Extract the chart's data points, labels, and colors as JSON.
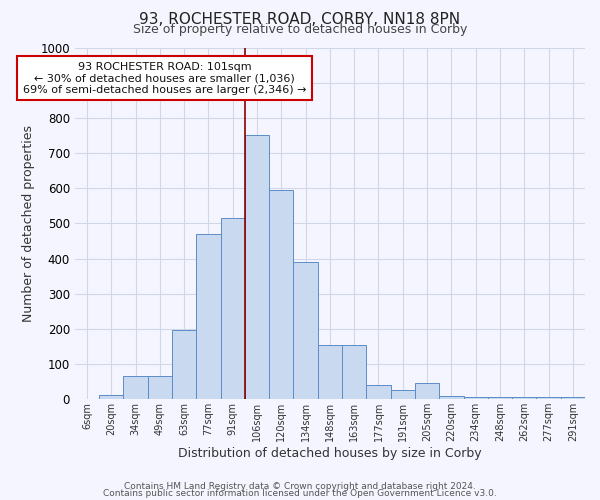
{
  "title1": "93, ROCHESTER ROAD, CORBY, NN18 8PN",
  "title2": "Size of property relative to detached houses in Corby",
  "xlabel": "Distribution of detached houses by size in Corby",
  "ylabel": "Number of detached properties",
  "annotation_line1": "93 ROCHESTER ROAD: 101sqm",
  "annotation_line2": "← 30% of detached houses are smaller (1,036)",
  "annotation_line3": "69% of semi-detached houses are larger (2,346) →",
  "bar_labels": [
    "6sqm",
    "20sqm",
    "34sqm",
    "49sqm",
    "63sqm",
    "77sqm",
    "91sqm",
    "106sqm",
    "120sqm",
    "134sqm",
    "148sqm",
    "163sqm",
    "177sqm",
    "191sqm",
    "205sqm",
    "220sqm",
    "234sqm",
    "248sqm",
    "262sqm",
    "277sqm",
    "291sqm"
  ],
  "bar_values": [
    0,
    11,
    65,
    65,
    196,
    470,
    515,
    750,
    595,
    390,
    155,
    155,
    40,
    25,
    45,
    10,
    5,
    5,
    5,
    5,
    5
  ],
  "bar_color": "#c9d9ef",
  "bar_edge_color": "#5b8cc8",
  "vline_x_index": 6,
  "vline_color": "#8b0000",
  "ylim": [
    0,
    1000
  ],
  "yticks": [
    0,
    100,
    200,
    300,
    400,
    500,
    600,
    700,
    800,
    900,
    1000
  ],
  "annotation_box_color": "white",
  "annotation_box_edge": "#cc0000",
  "footer1": "Contains HM Land Registry data © Crown copyright and database right 2024.",
  "footer2": "Contains public sector information licensed under the Open Government Licence v3.0.",
  "bg_color": "#f5f5ff",
  "grid_color": "#d0d8e8"
}
